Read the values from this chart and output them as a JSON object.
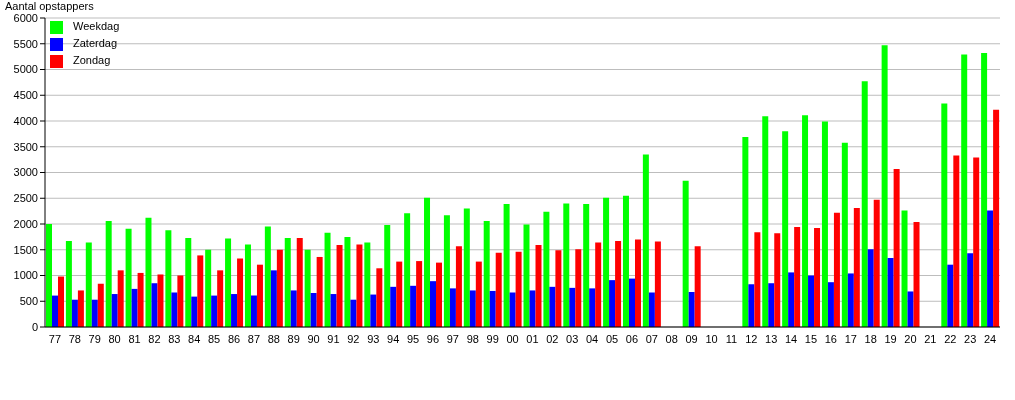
{
  "chart_data": {
    "type": "bar",
    "ylabel": "Aantal opstappers",
    "categories": [
      "77",
      "78",
      "79",
      "80",
      "81",
      "82",
      "83",
      "84",
      "85",
      "86",
      "87",
      "88",
      "89",
      "90",
      "91",
      "92",
      "93",
      "94",
      "95",
      "96",
      "97",
      "98",
      "99",
      "00",
      "01",
      "02",
      "03",
      "04",
      "05",
      "06",
      "07",
      "08",
      "09",
      "10",
      "11",
      "12",
      "13",
      "14",
      "15",
      "16",
      "17",
      "18",
      "19",
      "20",
      "21",
      "22",
      "23",
      "24"
    ],
    "series": [
      {
        "name": "Weekdag",
        "color": "#00ff00",
        "values": [
          2000,
          1670,
          1640,
          2060,
          1910,
          2120,
          1880,
          1730,
          1500,
          1720,
          1600,
          1950,
          1730,
          1500,
          1830,
          1750,
          1640,
          1980,
          2210,
          2510,
          2170,
          2300,
          2060,
          2390,
          1990,
          2240,
          2400,
          2390,
          2510,
          2550,
          3350,
          null,
          2840,
          null,
          null,
          3690,
          4090,
          3800,
          4110,
          3990,
          3580,
          4770,
          5470,
          2260,
          null,
          4340,
          5290,
          5320
        ]
      },
      {
        "name": "Zaterdag",
        "color": "#0000ff",
        "values": [
          610,
          530,
          530,
          640,
          740,
          850,
          670,
          590,
          610,
          640,
          610,
          1100,
          710,
          660,
          640,
          530,
          630,
          780,
          800,
          890,
          750,
          710,
          700,
          670,
          710,
          780,
          760,
          750,
          910,
          940,
          670,
          null,
          680,
          null,
          null,
          830,
          850,
          1060,
          1000,
          870,
          1040,
          1510,
          1340,
          690,
          null,
          1210,
          1430,
          2260
        ]
      },
      {
        "name": "Zondag",
        "color": "#ff0000",
        "values": [
          980,
          710,
          840,
          1100,
          1050,
          1020,
          1000,
          1390,
          1100,
          1330,
          1210,
          1500,
          1730,
          1360,
          1590,
          1600,
          1140,
          1270,
          1280,
          1250,
          1570,
          1270,
          1440,
          1460,
          1590,
          1490,
          1510,
          1640,
          1670,
          1700,
          1660,
          null,
          1570,
          null,
          null,
          1840,
          1820,
          1940,
          1920,
          2220,
          2310,
          2470,
          3070,
          2040,
          null,
          3330,
          3290,
          4220
        ]
      }
    ],
    "ylim": [
      0,
      6000
    ],
    "yticks": [
      0,
      500,
      1000,
      1500,
      2000,
      2500,
      3000,
      3500,
      4000,
      4500,
      5000,
      5500,
      6000
    ],
    "grid": "y",
    "legend": "top left"
  }
}
